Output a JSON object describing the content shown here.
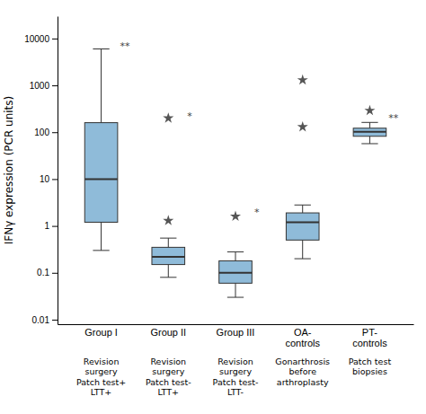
{
  "chart_data": {
    "type": "box",
    "categories": [
      "Group I",
      "Group II",
      "Group III",
      "OA-\ncontrols",
      "PT-\ncontrols"
    ],
    "subgroups": [
      "Revision\nsurgery\nPatch test+\nLTT+",
      "Revision\nsurgery\nPatch test-\nLTT+",
      "Revision\nsurgery\nPatch test-\nLTT-",
      "Gonarthrosis\nbefore\narthroplasty",
      "Patch test\nbiopsies"
    ],
    "boxes": [
      {
        "q1": 1.2,
        "median": 10.0,
        "q3": 160.0,
        "whislo": 0.3,
        "whishi": 6000.0
      },
      {
        "q1": 0.15,
        "median": 0.22,
        "q3": 0.35,
        "whislo": 0.08,
        "whishi": 0.55
      },
      {
        "q1": 0.06,
        "median": 0.1,
        "q3": 0.18,
        "whislo": 0.03,
        "whishi": 0.28
      },
      {
        "q1": 0.5,
        "median": 1.2,
        "q3": 1.9,
        "whislo": 0.2,
        "whishi": 2.8
      },
      {
        "q1": 82.0,
        "median": 102.0,
        "q3": 122.0,
        "whislo": 57.0,
        "whishi": 162.0
      }
    ],
    "outliers": [
      [],
      [
        200.0,
        1.3
      ],
      [
        1.6
      ],
      [
        1300.0,
        130.0
      ],
      [
        290.0
      ]
    ],
    "marker": "star",
    "annotations": [
      {
        "text": "**",
        "category": "Group I",
        "y": 6800
      },
      {
        "text": "*",
        "category": "Group II",
        "y": 220
      },
      {
        "text": "*",
        "category": "Group III",
        "y": 2.0
      },
      {
        "text": "**",
        "category": "PT-\ncontrols",
        "y": 200
      }
    ],
    "ylabel": "IFNγ expression (PCR units)",
    "log": "y",
    "ylim": [
      0.008,
      30000
    ],
    "yticks": [
      0.01,
      0.1,
      1,
      10,
      100,
      1000,
      10000
    ]
  }
}
